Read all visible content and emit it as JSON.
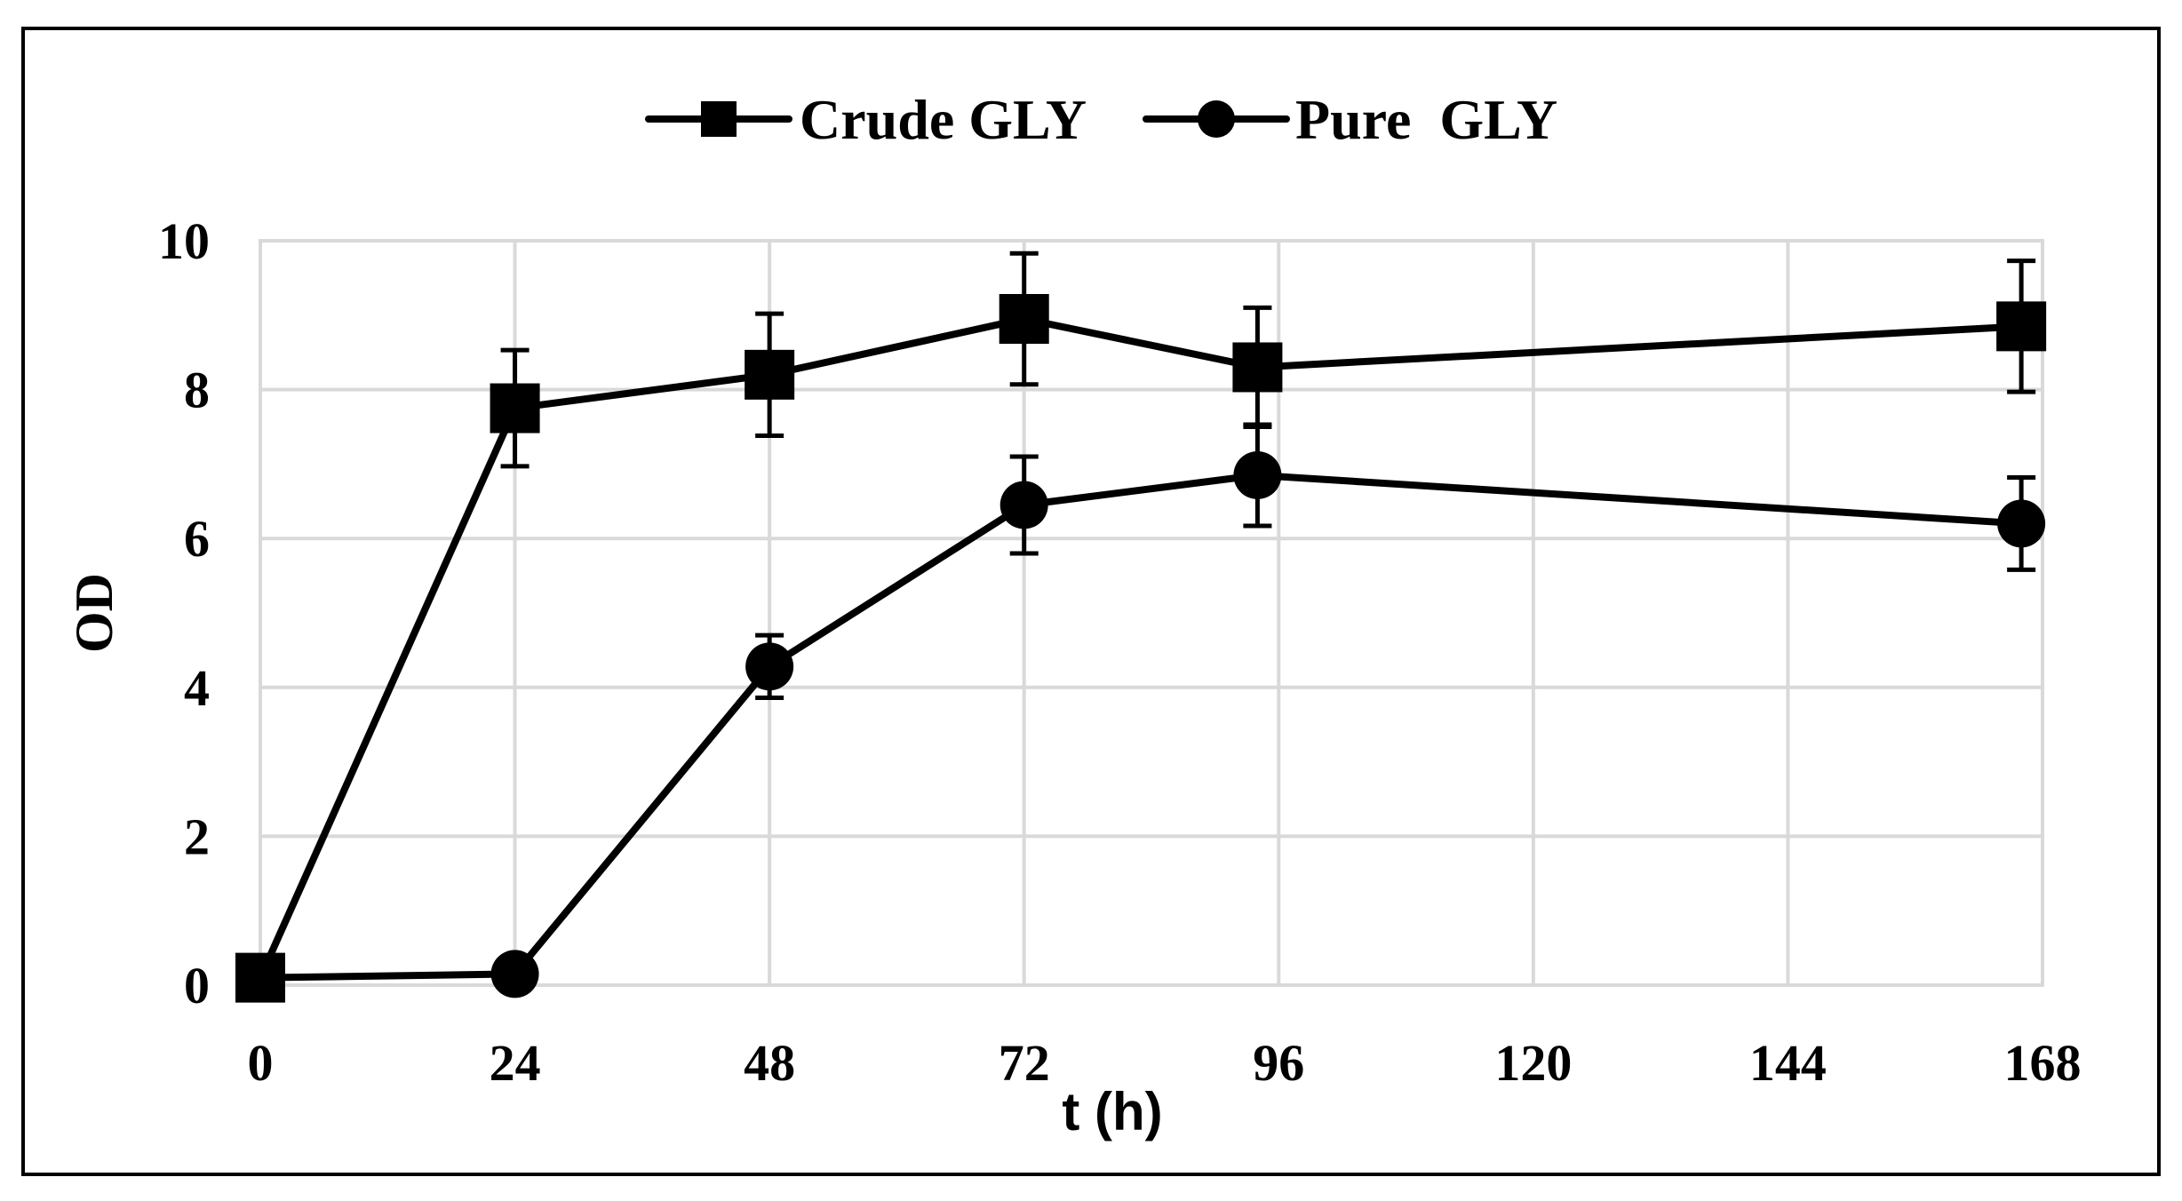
{
  "chart_data": {
    "type": "line",
    "title": "",
    "xlabel": "t (h)",
    "ylabel": "OD",
    "xlim": [
      0,
      168
    ],
    "ylim": [
      0,
      10
    ],
    "x_ticks": [
      0,
      24,
      48,
      72,
      96,
      120,
      144,
      168
    ],
    "y_ticks": [
      0,
      2,
      4,
      6,
      8,
      10
    ],
    "grid": true,
    "legend_position": "top",
    "series": [
      {
        "name": "Crude GLY",
        "marker": "square",
        "x": [
          0,
          24,
          48,
          72,
          94,
          166
        ],
        "values": [
          0.1,
          7.75,
          8.2,
          8.95,
          8.3,
          8.85
        ],
        "error": [
          0.0,
          0.78,
          0.82,
          0.88,
          0.8,
          0.88
        ]
      },
      {
        "name": "Pure  GLY",
        "marker": "circle",
        "x": [
          0,
          24,
          48,
          72,
          94,
          166
        ],
        "values": [
          0.1,
          0.15,
          4.28,
          6.45,
          6.85,
          6.2
        ],
        "error": [
          0.0,
          0.0,
          0.42,
          0.65,
          0.68,
          0.62
        ]
      }
    ],
    "colors": {
      "line": "#000000",
      "grid": "#d9d9d9",
      "frame": "#000000",
      "background": "#ffffff"
    }
  }
}
